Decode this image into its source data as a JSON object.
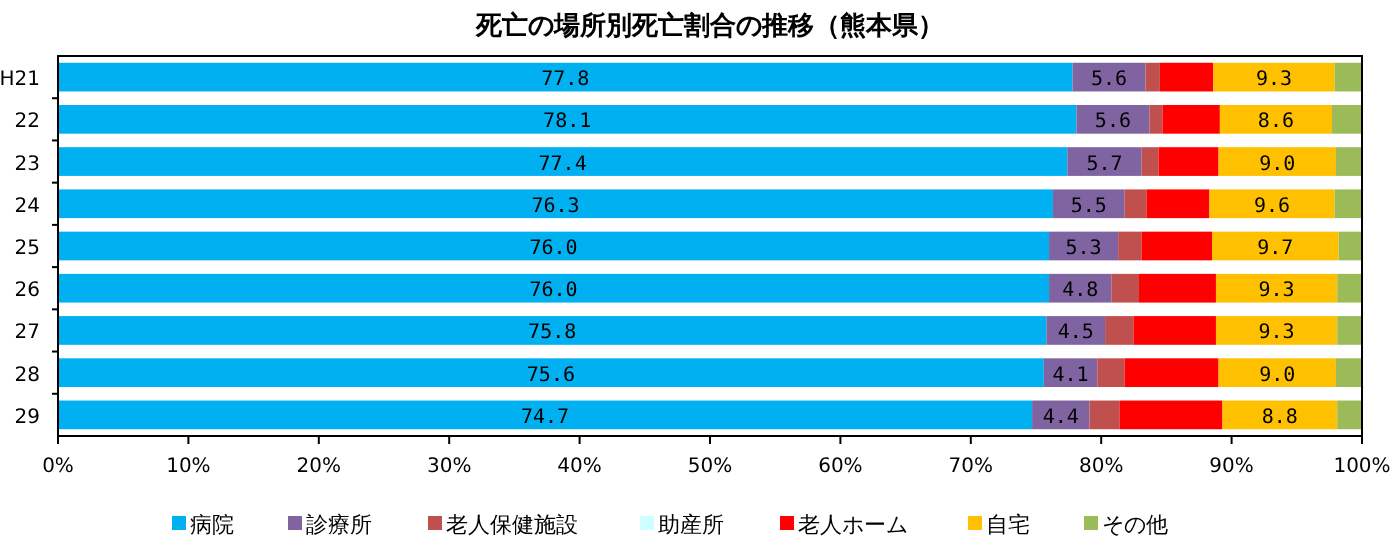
{
  "chart_data": {
    "type": "bar",
    "orientation": "horizontal",
    "stacked": true,
    "title": "死亡の場所別死亡割合の推移（熊本県）",
    "categories": [
      "H21",
      "22",
      "23",
      "24",
      "25",
      "26",
      "27",
      "28",
      "29"
    ],
    "series": [
      {
        "name": "病院",
        "color": "#00b0f0",
        "values": [
          77.8,
          78.1,
          77.4,
          76.3,
          76.0,
          76.0,
          75.8,
          75.6,
          74.7
        ],
        "value_labels": [
          "77.8",
          "78.1",
          "77.4",
          "76.3",
          "76.0",
          "76.0",
          "75.8",
          "75.6",
          "74.7"
        ]
      },
      {
        "name": "診療所",
        "color": "#8064a2",
        "values": [
          5.6,
          5.6,
          5.7,
          5.5,
          5.3,
          4.8,
          4.5,
          4.1,
          4.4
        ],
        "value_labels": [
          "5.6",
          "5.6",
          "5.7",
          "5.5",
          "5.3",
          "4.8",
          "4.5",
          "4.1",
          "4.4"
        ]
      },
      {
        "name": "老人保健施設",
        "color": "#c0504d",
        "values": [
          1.1,
          1.0,
          1.3,
          1.7,
          1.8,
          2.1,
          2.2,
          2.1,
          2.3
        ]
      },
      {
        "name": "助産所",
        "color": "#ccffff",
        "values": [
          0,
          0,
          0,
          0,
          0,
          0,
          0,
          0,
          0
        ]
      },
      {
        "name": "老人ホーム",
        "color": "#ff0000",
        "values": [
          4.1,
          4.4,
          4.6,
          4.8,
          5.4,
          5.9,
          6.3,
          7.2,
          7.9
        ]
      },
      {
        "name": "自宅",
        "color": "#ffc000",
        "values": [
          9.3,
          8.6,
          9.0,
          9.6,
          9.7,
          9.3,
          9.3,
          9.0,
          8.8
        ],
        "value_labels": [
          "9.3",
          "8.6",
          "9.0",
          "9.6",
          "9.7",
          "9.3",
          "9.3",
          "9.0",
          "8.8"
        ]
      },
      {
        "name": "その他",
        "color": "#9bbb59",
        "values": [
          2.1,
          2.3,
          2.0,
          2.1,
          1.8,
          1.9,
          1.9,
          2.0,
          1.9
        ]
      }
    ],
    "xlim": [
      0,
      100
    ],
    "xticks": [
      {
        "value": 0,
        "label": "0%"
      },
      {
        "value": 10,
        "label": "10%"
      },
      {
        "value": 20,
        "label": "20%"
      },
      {
        "value": 30,
        "label": "30%"
      },
      {
        "value": 40,
        "label": "40%"
      },
      {
        "value": 50,
        "label": "50%"
      },
      {
        "value": 60,
        "label": "60%"
      },
      {
        "value": 70,
        "label": "70%"
      },
      {
        "value": 80,
        "label": "80%"
      },
      {
        "value": 90,
        "label": "90%"
      },
      {
        "value": 100,
        "label": "100%"
      }
    ],
    "legend": "bottom"
  }
}
